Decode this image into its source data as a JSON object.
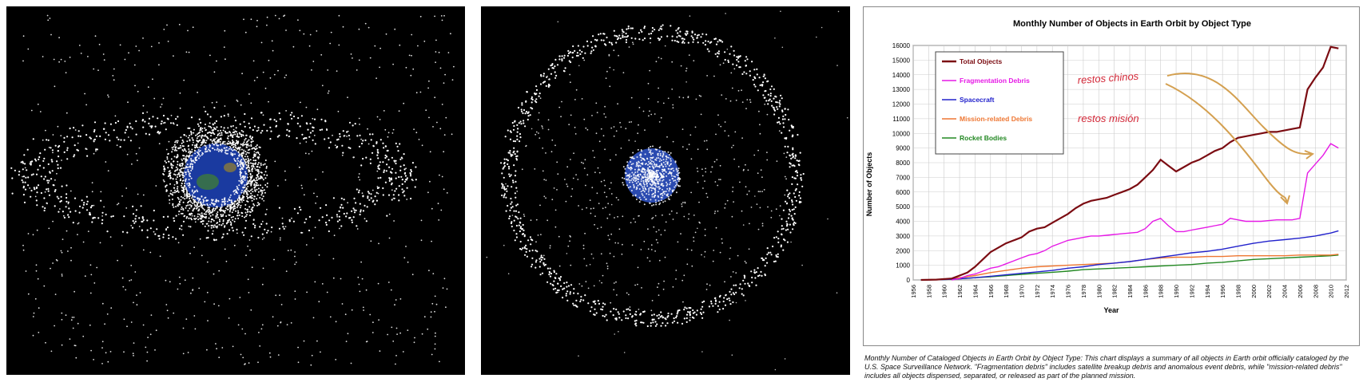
{
  "chart_data": {
    "type": "line",
    "title": "Monthly Number of Objects in Earth Orbit by Object Type",
    "xlabel": "Year",
    "ylabel": "Number of Objects",
    "xlim": [
      1956,
      2012
    ],
    "ylim": [
      0,
      16000
    ],
    "x_ticks": [
      "1956",
      "1958",
      "1960",
      "1962",
      "1964",
      "1966",
      "1968",
      "1970",
      "1972",
      "1974",
      "1976",
      "1978",
      "1980",
      "1982",
      "1984",
      "1986",
      "1988",
      "1990",
      "1992",
      "1994",
      "1996",
      "1998",
      "2000",
      "2002",
      "2004",
      "2006",
      "2008",
      "2010",
      "2012"
    ],
    "y_ticks": [
      "0",
      "1000",
      "2000",
      "3000",
      "4000",
      "5000",
      "6000",
      "7000",
      "8000",
      "9000",
      "10000",
      "11000",
      "12000",
      "13000",
      "14000",
      "15000",
      "16000"
    ],
    "grid": true,
    "legend_position": "top-left",
    "series": [
      {
        "name": "Total Objects",
        "color": "#7b0c12",
        "points": [
          [
            1957,
            0
          ],
          [
            1959,
            20
          ],
          [
            1961,
            100
          ],
          [
            1962,
            300
          ],
          [
            1963,
            500
          ],
          [
            1964,
            900
          ],
          [
            1965,
            1400
          ],
          [
            1966,
            1900
          ],
          [
            1967,
            2200
          ],
          [
            1968,
            2500
          ],
          [
            1969,
            2700
          ],
          [
            1970,
            2900
          ],
          [
            1971,
            3300
          ],
          [
            1972,
            3500
          ],
          [
            1973,
            3600
          ],
          [
            1974,
            3900
          ],
          [
            1975,
            4200
          ],
          [
            1976,
            4500
          ],
          [
            1977,
            4900
          ],
          [
            1978,
            5200
          ],
          [
            1979,
            5400
          ],
          [
            1980,
            5500
          ],
          [
            1981,
            5600
          ],
          [
            1982,
            5800
          ],
          [
            1983,
            6000
          ],
          [
            1984,
            6200
          ],
          [
            1985,
            6500
          ],
          [
            1986,
            7000
          ],
          [
            1987,
            7500
          ],
          [
            1988,
            8200
          ],
          [
            1989,
            7800
          ],
          [
            1990,
            7400
          ],
          [
            1991,
            7700
          ],
          [
            1992,
            8000
          ],
          [
            1993,
            8200
          ],
          [
            1994,
            8500
          ],
          [
            1995,
            8800
          ],
          [
            1996,
            9000
          ],
          [
            1997,
            9400
          ],
          [
            1998,
            9700
          ],
          [
            1999,
            9800
          ],
          [
            2000,
            9900
          ],
          [
            2001,
            10000
          ],
          [
            2002,
            10100
          ],
          [
            2003,
            10100
          ],
          [
            2004,
            10200
          ],
          [
            2005,
            10300
          ],
          [
            2006,
            10400
          ],
          [
            2007,
            13000
          ],
          [
            2008,
            13800
          ],
          [
            2009,
            14500
          ],
          [
            2010,
            15900
          ],
          [
            2011,
            15800
          ]
        ]
      },
      {
        "name": "Fragmentation Debris",
        "color": "#e619e6",
        "points": [
          [
            1961,
            0
          ],
          [
            1962,
            100
          ],
          [
            1963,
            300
          ],
          [
            1964,
            400
          ],
          [
            1965,
            600
          ],
          [
            1966,
            800
          ],
          [
            1967,
            900
          ],
          [
            1968,
            1100
          ],
          [
            1969,
            1300
          ],
          [
            1970,
            1500
          ],
          [
            1971,
            1700
          ],
          [
            1972,
            1800
          ],
          [
            1973,
            2000
          ],
          [
            1974,
            2300
          ],
          [
            1975,
            2500
          ],
          [
            1976,
            2700
          ],
          [
            1977,
            2800
          ],
          [
            1978,
            2900
          ],
          [
            1979,
            3000
          ],
          [
            1980,
            3000
          ],
          [
            1981,
            3050
          ],
          [
            1982,
            3100
          ],
          [
            1983,
            3150
          ],
          [
            1984,
            3200
          ],
          [
            1985,
            3250
          ],
          [
            1986,
            3500
          ],
          [
            1987,
            4000
          ],
          [
            1988,
            4200
          ],
          [
            1989,
            3700
          ],
          [
            1990,
            3300
          ],
          [
            1991,
            3300
          ],
          [
            1992,
            3400
          ],
          [
            1993,
            3500
          ],
          [
            1994,
            3600
          ],
          [
            1995,
            3700
          ],
          [
            1996,
            3800
          ],
          [
            1997,
            4200
          ],
          [
            1998,
            4100
          ],
          [
            1999,
            4000
          ],
          [
            2000,
            4000
          ],
          [
            2001,
            4000
          ],
          [
            2002,
            4050
          ],
          [
            2003,
            4100
          ],
          [
            2004,
            4100
          ],
          [
            2005,
            4100
          ],
          [
            2006,
            4200
          ],
          [
            2007,
            7300
          ],
          [
            2008,
            7900
          ],
          [
            2009,
            8500
          ],
          [
            2010,
            9300
          ],
          [
            2011,
            9000
          ]
        ]
      },
      {
        "name": "Spacecraft",
        "color": "#2222cc",
        "points": [
          [
            1957,
            0
          ],
          [
            1960,
            20
          ],
          [
            1962,
            80
          ],
          [
            1964,
            150
          ],
          [
            1966,
            250
          ],
          [
            1968,
            350
          ],
          [
            1970,
            450
          ],
          [
            1972,
            550
          ],
          [
            1974,
            650
          ],
          [
            1976,
            800
          ],
          [
            1978,
            900
          ],
          [
            1980,
            1050
          ],
          [
            1982,
            1150
          ],
          [
            1984,
            1250
          ],
          [
            1986,
            1400
          ],
          [
            1988,
            1550
          ],
          [
            1990,
            1700
          ],
          [
            1992,
            1850
          ],
          [
            1994,
            1950
          ],
          [
            1996,
            2100
          ],
          [
            1998,
            2300
          ],
          [
            2000,
            2500
          ],
          [
            2002,
            2650
          ],
          [
            2004,
            2750
          ],
          [
            2006,
            2850
          ],
          [
            2008,
            3000
          ],
          [
            2010,
            3200
          ],
          [
            2011,
            3350
          ]
        ]
      },
      {
        "name": "Mission-related Debris",
        "color": "#ee7733",
        "points": [
          [
            1957,
            0
          ],
          [
            1960,
            50
          ],
          [
            1962,
            150
          ],
          [
            1964,
            300
          ],
          [
            1966,
            500
          ],
          [
            1968,
            650
          ],
          [
            1970,
            800
          ],
          [
            1972,
            900
          ],
          [
            1974,
            950
          ],
          [
            1976,
            1000
          ],
          [
            1978,
            1050
          ],
          [
            1980,
            1100
          ],
          [
            1982,
            1150
          ],
          [
            1984,
            1250
          ],
          [
            1986,
            1400
          ],
          [
            1988,
            1500
          ],
          [
            1990,
            1550
          ],
          [
            1992,
            1550
          ],
          [
            1994,
            1600
          ],
          [
            1996,
            1600
          ],
          [
            1998,
            1650
          ],
          [
            2000,
            1650
          ],
          [
            2002,
            1650
          ],
          [
            2004,
            1650
          ],
          [
            2006,
            1700
          ],
          [
            2008,
            1700
          ],
          [
            2010,
            1700
          ],
          [
            2011,
            1750
          ]
        ]
      },
      {
        "name": "Rocket Bodies",
        "color": "#228822",
        "points": [
          [
            1957,
            0
          ],
          [
            1960,
            20
          ],
          [
            1962,
            80
          ],
          [
            1964,
            150
          ],
          [
            1966,
            220
          ],
          [
            1968,
            300
          ],
          [
            1970,
            380
          ],
          [
            1972,
            450
          ],
          [
            1974,
            520
          ],
          [
            1976,
            600
          ],
          [
            1978,
            700
          ],
          [
            1980,
            750
          ],
          [
            1982,
            800
          ],
          [
            1984,
            850
          ],
          [
            1986,
            900
          ],
          [
            1988,
            950
          ],
          [
            1990,
            1000
          ],
          [
            1992,
            1050
          ],
          [
            1994,
            1150
          ],
          [
            1996,
            1200
          ],
          [
            1998,
            1300
          ],
          [
            2000,
            1400
          ],
          [
            2002,
            1450
          ],
          [
            2004,
            1500
          ],
          [
            2006,
            1550
          ],
          [
            2008,
            1600
          ],
          [
            2010,
            1650
          ],
          [
            2011,
            1700
          ]
        ]
      }
    ],
    "annotations": {
      "fragmentation_note": "restos chinos",
      "mission_note": "restos misión"
    }
  },
  "caption": {
    "lead": "Monthly Number of Cataloged Objects in Earth Orbit by Object Type:",
    "body": " This chart displays a summary of all objects in Earth orbit officially cataloged by the U.S. Space Surveillance Network. \"Fragmentation debris\" includes satellite breakup debris and anomalous event debris, while \"mission-related debris\" includes all objects dispensed, separated, or released as part of the planned mission."
  }
}
